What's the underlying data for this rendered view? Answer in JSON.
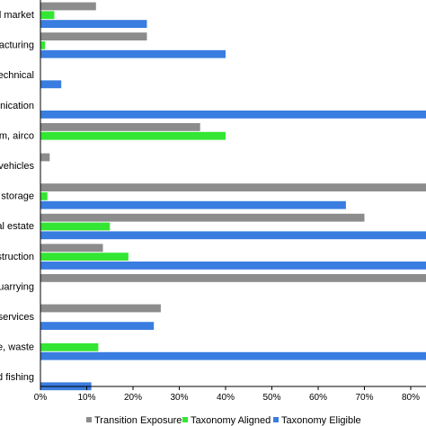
{
  "chart_data": {
    "type": "bar",
    "orientation": "horizontal",
    "categories": [
      "al market",
      "facturing",
      "technical",
      "unication",
      "am, airco",
      "r vehicles",
      "d storage",
      "eal estate",
      "struction",
      "quarrying",
      "t services",
      "ge, waste",
      "d fishing"
    ],
    "series": [
      {
        "name": "Transition Exposure",
        "color": "#8c8c8c",
        "values": [
          12,
          23,
          0,
          0,
          34.5,
          2,
          84,
          70,
          13.5,
          84,
          26,
          0,
          0
        ]
      },
      {
        "name": "Taxonomy Aligned",
        "color": "#33e633",
        "values": [
          3,
          1,
          0,
          0,
          40,
          0,
          1.5,
          15,
          19,
          0,
          0,
          12.5,
          0
        ]
      },
      {
        "name": "Taxonomy Eligible",
        "color": "#3a7de0",
        "values": [
          23,
          40,
          4.5,
          84,
          0,
          0,
          66,
          84,
          84,
          0,
          24.5,
          84,
          11
        ]
      }
    ],
    "xticks": [
      "0%",
      "10%",
      "20%",
      "30%",
      "40%",
      "50%",
      "60%",
      "70%",
      "80%"
    ],
    "xlim": [
      0,
      84
    ],
    "grid": false,
    "legend_position": "bottom"
  }
}
